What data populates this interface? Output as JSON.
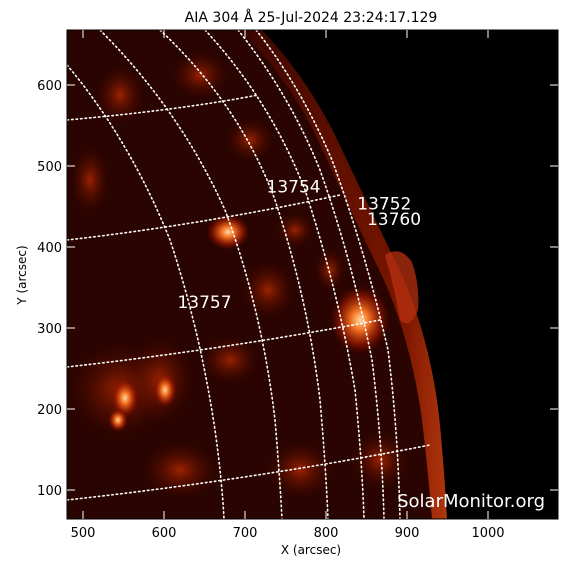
{
  "title": "AIA 304 Å 25-Jul-2024 23:24:17.129",
  "x_axis": {
    "label": "X (arcsec)",
    "ticks": [
      "500",
      "600",
      "700",
      "800",
      "900",
      "1000"
    ]
  },
  "y_axis": {
    "label": "Y (arcsec)",
    "ticks": [
      "100",
      "200",
      "300",
      "400",
      "500",
      "600"
    ]
  },
  "regions": [
    {
      "number": "13754",
      "x_arcsec": 760,
      "y_arcsec": 467
    },
    {
      "number": "13752",
      "x_arcsec": 872,
      "y_arcsec": 446
    },
    {
      "number": "13760",
      "x_arcsec": 884,
      "y_arcsec": 427
    },
    {
      "number": "13757",
      "x_arcsec": 650,
      "y_arcsec": 325
    }
  ],
  "watermark": "SolarMonitor.org",
  "colors": {
    "background": "#000000",
    "emission": "#c02000",
    "grid": "#ffffff"
  }
}
